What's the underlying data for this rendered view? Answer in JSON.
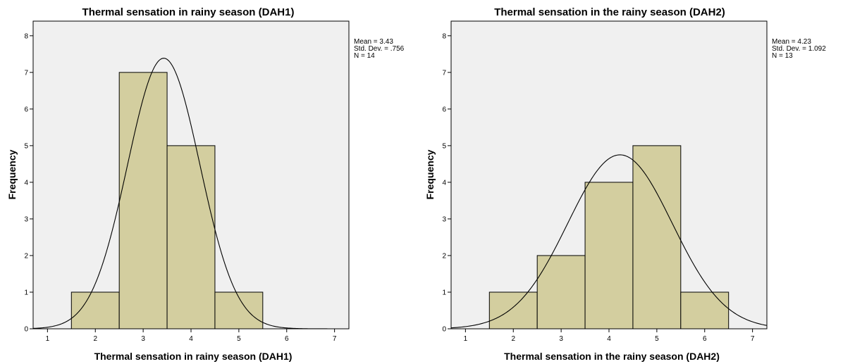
{
  "chart_data": [
    {
      "type": "bar",
      "subtype": "histogram-with-normal-curve",
      "title": "Thermal sensation in rainy season (DAH1)",
      "xlabel": "Thermal sensation in rainy season (DAH1)",
      "ylabel": "Frequency",
      "xlim": [
        0.7,
        7.3
      ],
      "ylim": [
        0,
        8.4
      ],
      "x_ticks": [
        "1",
        "2",
        "3",
        "4",
        "5",
        "6",
        "7"
      ],
      "y_ticks": [
        "0",
        "1",
        "2",
        "3",
        "4",
        "5",
        "6",
        "7",
        "8"
      ],
      "bins": [
        {
          "center": 2,
          "value": 1
        },
        {
          "center": 3,
          "value": 7
        },
        {
          "center": 4,
          "value": 5
        },
        {
          "center": 5,
          "value": 1
        }
      ],
      "bin_width": 1,
      "stats": {
        "mean": 3.43,
        "std": 0.756,
        "n": 14
      },
      "stats_text": [
        "Mean = 3.43",
        "Std. Dev. = .756",
        "N = 14"
      ],
      "grid": false,
      "colors": {
        "bar": "#d3ce9f",
        "plot_background": "#f0f0f0"
      }
    },
    {
      "type": "bar",
      "subtype": "histogram-with-normal-curve",
      "title": "Thermal sensation in the rainy season (DAH2)",
      "xlabel": "Thermal sensation in the rainy season (DAH2)",
      "ylabel": "Frequency",
      "xlim": [
        0.7,
        7.3
      ],
      "ylim": [
        0,
        8.4
      ],
      "x_ticks": [
        "1",
        "2",
        "3",
        "4",
        "5",
        "6",
        "7"
      ],
      "y_ticks": [
        "0",
        "1",
        "2",
        "3",
        "4",
        "5",
        "6",
        "7",
        "8"
      ],
      "bins": [
        {
          "center": 2,
          "value": 1
        },
        {
          "center": 3,
          "value": 2
        },
        {
          "center": 4,
          "value": 4
        },
        {
          "center": 5,
          "value": 5
        },
        {
          "center": 6,
          "value": 1
        }
      ],
      "bin_width": 1,
      "stats": {
        "mean": 4.23,
        "std": 1.092,
        "n": 13
      },
      "stats_text": [
        "Mean = 4.23",
        "Std. Dev. = 1.092",
        "N = 13"
      ],
      "grid": false,
      "colors": {
        "bar": "#d3ce9f",
        "plot_background": "#f0f0f0"
      }
    }
  ]
}
